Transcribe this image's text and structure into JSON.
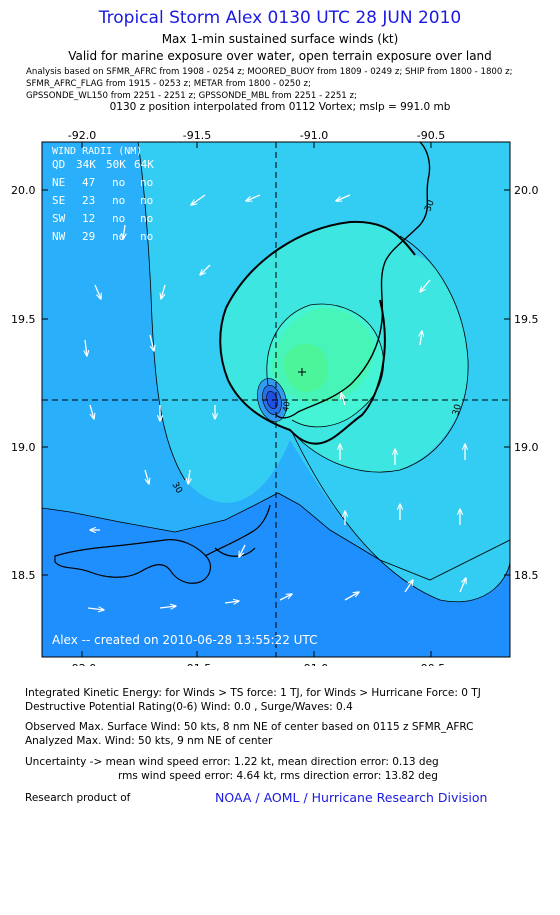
{
  "header": {
    "title": "Tropical Storm Alex 0130 UTC 28 JUN 2010",
    "subtitle1": "Max 1-min sustained surface winds (kt)",
    "subtitle2": "Valid for marine exposure over water, open terrain exposure over land",
    "analysis_lines": [
      "Analysis based on   SFMR_AFRC from 1908 - 0254 z;   MOORED_BUOY from 1809 - 0249 z;   SHIP from 1800 - 1800 z;",
      "SFMR_AFRC_FLAG from 1915 - 0253 z;   METAR from 1800 - 0250 z;",
      "GPSSONDE_WL150 from 2251 - 2251 z;   GPSSONDE_MBL from 2251 - 2251 z;"
    ],
    "position_note": "0130 z position interpolated from 0112 Vortex; mslp = 991.0 mb"
  },
  "map": {
    "lon_ticks": [
      "-92.0",
      "-91.5",
      "-91.0",
      "-90.5"
    ],
    "lat_ticks": [
      "20.0",
      "19.5",
      "19.0",
      "18.5"
    ],
    "center_lon": -91.15,
    "center_lat": 19.17,
    "max_wind_lon": -91.06,
    "max_wind_lat": 19.29,
    "contour_labels": [
      "30",
      "30",
      "30",
      "40"
    ],
    "wind_radii": {
      "title": "WIND RADII (NM)",
      "header": [
        "QD",
        "34K",
        "50K",
        "64K"
      ],
      "rows": [
        [
          "NE",
          "47",
          "no",
          "no"
        ],
        [
          "SE",
          "23",
          "no",
          "no"
        ],
        [
          "SW",
          "12",
          "no",
          "no"
        ],
        [
          "NW",
          "29",
          "no",
          "no"
        ]
      ]
    },
    "creator_note": "Alex -- created on 2010-06-28 13:55:22 UTC",
    "colors": {
      "deep_blue": "#1f8ffd",
      "mid_blue": "#2ab0fb",
      "cyan": "#33ccf2",
      "cyan_light": "#3ee6e2",
      "aqua": "#44f4d5",
      "green1": "#48f5b8",
      "green2": "#4cf59a",
      "core_blue": "#1e4fe0"
    }
  },
  "footer": {
    "ike": "Integrated Kinetic Energy:  for Winds > TS force: 1 TJ,  for Winds > Hurricane Force: 0 TJ",
    "dpr": "Destructive Potential Rating(0-6)   Wind: 0.0 , Surge/Waves: 0.4",
    "observed": "Observed Max. Surface Wind: 50 kts, 8 nm NE of center based on 0115 z SFMR_AFRC",
    "analyzed": "Analyzed Max. Wind: 50 kts, 9 nm NE of center",
    "uncertainty1": "Uncertainty -> mean wind speed error: 1.22 kt,   mean direction error: 0.13 deg",
    "uncertainty2": "rms wind speed error: 4.64 kt,   rms direction error: 13.82 deg",
    "research": "Research product of",
    "credit": "NOAA / AOML / Hurricane Research Division"
  }
}
